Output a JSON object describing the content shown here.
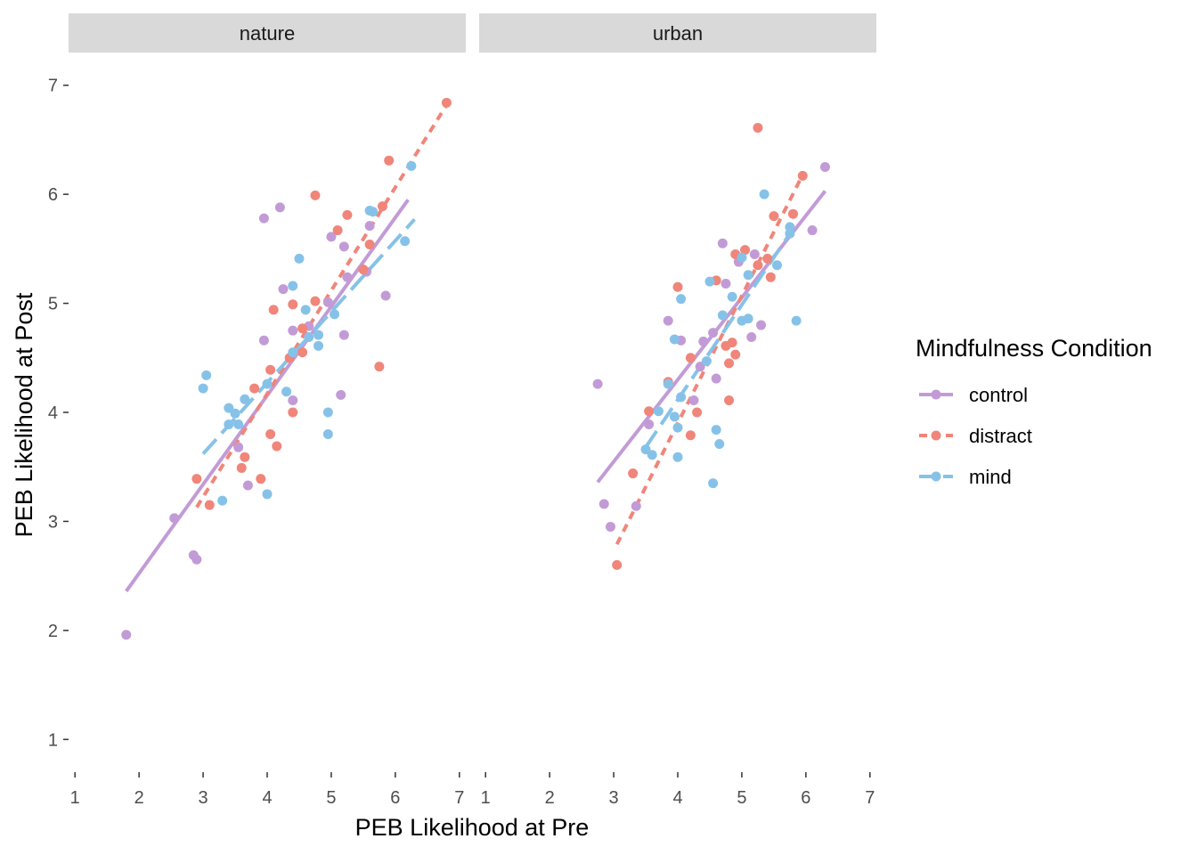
{
  "chart_data": {
    "type": "scatter",
    "xlabel": "PEB Likelihood at Pre",
    "ylabel": "PEB Likelihood at Post",
    "xlim": [
      0.9,
      7.1
    ],
    "ylim": [
      0.7,
      7.3
    ],
    "x_ticks": [
      "1",
      "2",
      "3",
      "4",
      "5",
      "6",
      "7"
    ],
    "y_ticks": [
      "1",
      "2",
      "3",
      "4",
      "5",
      "6",
      "7"
    ],
    "grid": false,
    "legend": {
      "title": "Mindfulness Condition",
      "placement": "right",
      "entries": [
        {
          "name": "control",
          "color": "#c29bd6",
          "dash": "solid"
        },
        {
          "name": "distract",
          "color": "#f0857a",
          "dash": "dashed"
        },
        {
          "name": "mind",
          "color": "#86c2e8",
          "dash": "longdash"
        }
      ]
    },
    "facets": [
      {
        "label": "nature",
        "fits": [
          {
            "series": "control",
            "x": [
              1.8,
              6.2
            ],
            "y": [
              2.36,
              5.95
            ]
          },
          {
            "series": "distract",
            "x": [
              2.9,
              6.8
            ],
            "y": [
              3.13,
              6.82
            ]
          },
          {
            "series": "mind",
            "x": [
              3.0,
              6.3
            ],
            "y": [
              3.62,
              5.77
            ]
          }
        ],
        "points": [
          {
            "series": "control",
            "data": [
              [
                1.8,
                1.96
              ],
              [
                2.55,
                3.03
              ],
              [
                2.85,
                2.69
              ],
              [
                2.9,
                2.65
              ],
              [
                3.55,
                3.68
              ],
              [
                3.7,
                3.33
              ],
              [
                3.95,
                5.78
              ],
              [
                3.95,
                4.66
              ],
              [
                4.2,
                5.88
              ],
              [
                4.25,
                5.13
              ],
              [
                4.4,
                4.11
              ],
              [
                4.4,
                4.75
              ],
              [
                4.65,
                4.79
              ],
              [
                4.95,
                5.01
              ],
              [
                5.0,
                5.61
              ],
              [
                5.15,
                4.16
              ],
              [
                5.2,
                4.71
              ],
              [
                5.2,
                5.52
              ],
              [
                5.25,
                5.24
              ],
              [
                5.55,
                5.29
              ],
              [
                5.6,
                5.71
              ],
              [
                5.85,
                5.07
              ]
            ]
          },
          {
            "series": "distract",
            "data": [
              [
                2.9,
                3.39
              ],
              [
                3.1,
                3.15
              ],
              [
                3.6,
                3.49
              ],
              [
                3.65,
                3.59
              ],
              [
                3.8,
                4.22
              ],
              [
                3.9,
                3.39
              ],
              [
                4.05,
                3.8
              ],
              [
                4.05,
                4.39
              ],
              [
                4.1,
                4.94
              ],
              [
                4.15,
                3.69
              ],
              [
                4.35,
                4.5
              ],
              [
                4.4,
                4.99
              ],
              [
                4.4,
                4.0
              ],
              [
                4.55,
                4.55
              ],
              [
                4.55,
                4.77
              ],
              [
                4.75,
                5.99
              ],
              [
                4.75,
                5.02
              ],
              [
                5.1,
                5.67
              ],
              [
                5.25,
                5.81
              ],
              [
                5.5,
                5.31
              ],
              [
                5.6,
                5.54
              ],
              [
                5.75,
                4.42
              ],
              [
                5.8,
                5.89
              ],
              [
                5.9,
                6.31
              ],
              [
                6.8,
                6.84
              ]
            ]
          },
          {
            "series": "mind",
            "data": [
              [
                3.0,
                4.22
              ],
              [
                3.05,
                4.34
              ],
              [
                3.3,
                3.19
              ],
              [
                3.4,
                3.89
              ],
              [
                3.4,
                4.04
              ],
              [
                3.5,
                3.99
              ],
              [
                3.55,
                3.89
              ],
              [
                3.65,
                4.12
              ],
              [
                4.0,
                3.25
              ],
              [
                4.0,
                4.26
              ],
              [
                4.3,
                4.19
              ],
              [
                4.4,
                4.55
              ],
              [
                4.4,
                5.16
              ],
              [
                4.5,
                5.41
              ],
              [
                4.6,
                4.94
              ],
              [
                4.65,
                4.69
              ],
              [
                4.8,
                4.61
              ],
              [
                4.8,
                4.71
              ],
              [
                4.95,
                3.8
              ],
              [
                4.95,
                4.0
              ],
              [
                5.05,
                4.9
              ],
              [
                5.6,
                5.85
              ],
              [
                5.65,
                5.84
              ],
              [
                6.15,
                5.57
              ],
              [
                6.25,
                6.26
              ]
            ]
          }
        ]
      },
      {
        "label": "urban",
        "fits": [
          {
            "series": "control",
            "x": [
              2.75,
              6.3
            ],
            "y": [
              3.36,
              6.03
            ]
          },
          {
            "series": "distract",
            "x": [
              3.05,
              5.95
            ],
            "y": [
              2.79,
              6.18
            ]
          },
          {
            "series": "mind",
            "x": [
              3.5,
              5.75
            ],
            "y": [
              3.68,
              5.64
            ]
          }
        ],
        "points": [
          {
            "series": "control",
            "data": [
              [
                2.75,
                4.26
              ],
              [
                2.85,
                3.16
              ],
              [
                2.95,
                2.95
              ],
              [
                3.35,
                3.14
              ],
              [
                3.55,
                3.89
              ],
              [
                3.85,
                4.84
              ],
              [
                4.05,
                4.66
              ],
              [
                4.25,
                4.11
              ],
              [
                4.35,
                4.42
              ],
              [
                4.4,
                4.65
              ],
              [
                4.55,
                4.73
              ],
              [
                4.6,
                4.31
              ],
              [
                4.7,
                5.55
              ],
              [
                4.75,
                5.18
              ],
              [
                4.95,
                5.38
              ],
              [
                5.15,
                4.69
              ],
              [
                5.2,
                5.45
              ],
              [
                5.3,
                4.8
              ],
              [
                6.1,
                5.67
              ],
              [
                6.3,
                6.25
              ]
            ]
          },
          {
            "series": "distract",
            "data": [
              [
                3.05,
                2.6
              ],
              [
                3.3,
                3.44
              ],
              [
                3.55,
                4.01
              ],
              [
                3.85,
                4.28
              ],
              [
                4.0,
                5.15
              ],
              [
                4.2,
                3.79
              ],
              [
                4.2,
                4.5
              ],
              [
                4.3,
                4.0
              ],
              [
                4.6,
                5.21
              ],
              [
                4.75,
                4.61
              ],
              [
                4.8,
                4.45
              ],
              [
                4.8,
                4.11
              ],
              [
                4.85,
                4.64
              ],
              [
                4.9,
                4.53
              ],
              [
                4.9,
                5.45
              ],
              [
                5.05,
                5.49
              ],
              [
                5.25,
                6.61
              ],
              [
                5.25,
                5.35
              ],
              [
                5.4,
                5.41
              ],
              [
                5.45,
                5.24
              ],
              [
                5.5,
                5.8
              ],
              [
                5.8,
                5.82
              ],
              [
                5.95,
                6.17
              ]
            ]
          },
          {
            "series": "mind",
            "data": [
              [
                3.5,
                3.66
              ],
              [
                3.6,
                3.61
              ],
              [
                3.7,
                4.01
              ],
              [
                3.85,
                4.26
              ],
              [
                3.95,
                4.67
              ],
              [
                3.95,
                3.96
              ],
              [
                4.0,
                3.59
              ],
              [
                4.0,
                3.86
              ],
              [
                4.05,
                4.14
              ],
              [
                4.05,
                5.04
              ],
              [
                4.45,
                4.47
              ],
              [
                4.5,
                5.2
              ],
              [
                4.55,
                3.35
              ],
              [
                4.6,
                3.84
              ],
              [
                4.65,
                3.71
              ],
              [
                4.7,
                4.89
              ],
              [
                4.85,
                5.06
              ],
              [
                5.0,
                4.84
              ],
              [
                5.0,
                5.42
              ],
              [
                5.1,
                4.86
              ],
              [
                5.1,
                5.26
              ],
              [
                5.35,
                6.0
              ],
              [
                5.55,
                5.35
              ],
              [
                5.75,
                5.64
              ],
              [
                5.75,
                5.7
              ],
              [
                5.85,
                4.84
              ]
            ]
          }
        ]
      }
    ]
  }
}
